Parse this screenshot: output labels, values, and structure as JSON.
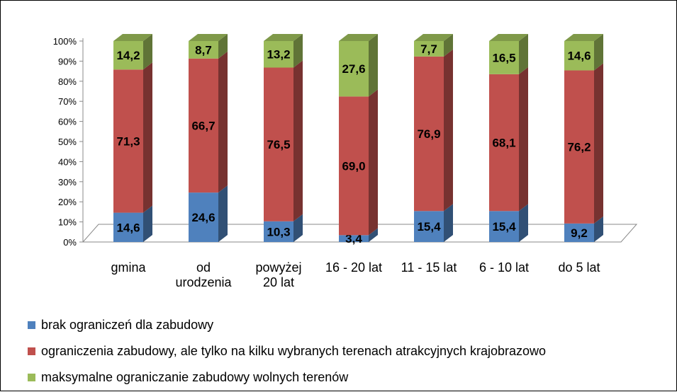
{
  "chart_data": {
    "type": "bar",
    "stacked": true,
    "percent_stacked": true,
    "three_d": true,
    "categories": [
      "gmina",
      "od urodzenia",
      "powyżej 20 lat",
      "16 - 20 lat",
      "11 - 15 lat",
      "6 - 10 lat",
      "do 5 lat"
    ],
    "category_lines": [
      [
        "gmina"
      ],
      [
        "od",
        "urodzenia"
      ],
      [
        "powyżej",
        "20 lat"
      ],
      [
        "16 - 20 lat"
      ],
      [
        "11 - 15 lat"
      ],
      [
        "6 - 10 lat"
      ],
      [
        "do 5 lat"
      ]
    ],
    "series": [
      {
        "name": "brak ograniczeń dla zabudowy",
        "color": "#4F81BD",
        "values": [
          14.6,
          24.6,
          10.3,
          3.4,
          15.4,
          15.4,
          9.2
        ],
        "labels": [
          "14,6",
          "24,6",
          "10,3",
          "3,4",
          "15,4",
          "15,4",
          "9,2"
        ]
      },
      {
        "name": "ograniczenia zabudowy, ale tylko na kilku  wybranych terenach atrakcyjnych krajobrazowo",
        "color": "#C0504D",
        "values": [
          71.3,
          66.7,
          76.5,
          69.0,
          76.9,
          68.1,
          76.2
        ],
        "labels": [
          "71,3",
          "66,7",
          "76,5",
          "69,0",
          "76,9",
          "68,1",
          "76,2"
        ]
      },
      {
        "name": "maksymalne ograniczanie zabudowy wolnych terenów",
        "color": "#9BBB59",
        "values": [
          14.2,
          8.7,
          13.2,
          27.6,
          7.7,
          16.5,
          14.6
        ],
        "labels": [
          "14,2",
          "8,7",
          "13,2",
          "27,6",
          "7,7",
          "16,5",
          "14,6"
        ]
      }
    ],
    "y_ticks": [
      "0%",
      "10%",
      "20%",
      "30%",
      "40%",
      "50%",
      "60%",
      "70%",
      "80%",
      "90%",
      "100%"
    ],
    "ylim": [
      0,
      100
    ],
    "legend_position": "bottom-left",
    "grid": false
  }
}
